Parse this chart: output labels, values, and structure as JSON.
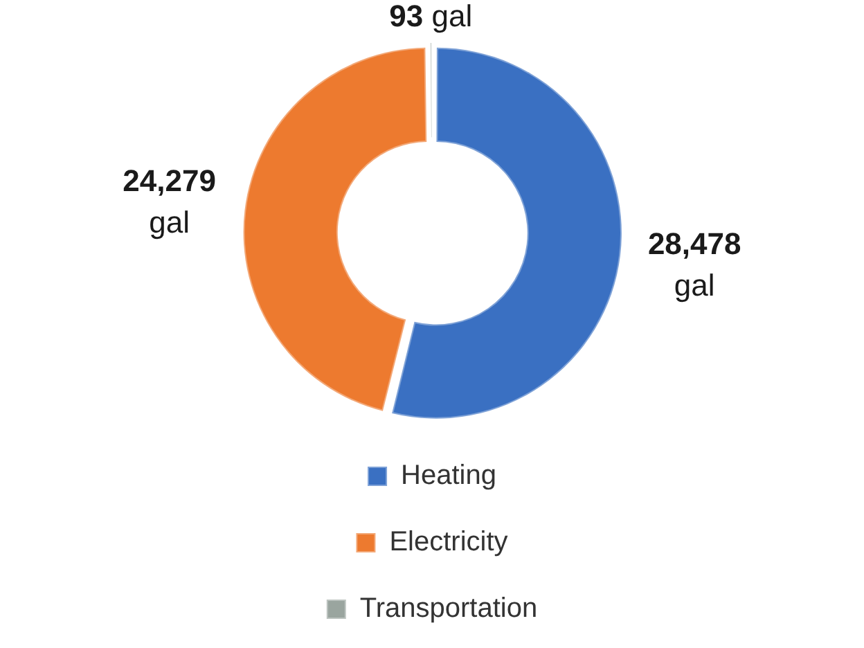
{
  "chart_data": {
    "type": "donut",
    "categories": [
      "Heating",
      "Electricity",
      "Transportation"
    ],
    "values": [
      28478,
      24279,
      93
    ],
    "colors": [
      "#3a70c2",
      "#ed7a2f",
      "#9aa59f"
    ],
    "value_labels": [
      "28,478 gal",
      "24,279 gal",
      "93 gal"
    ],
    "legend": "bottom"
  }
}
